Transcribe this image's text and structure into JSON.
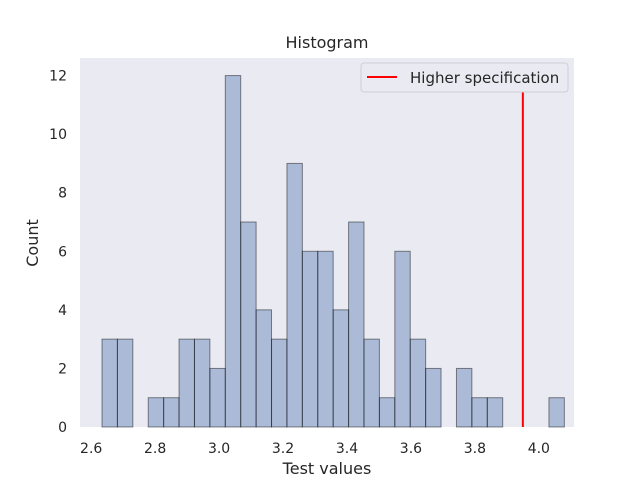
{
  "chart_data": {
    "type": "bar",
    "title": "Histogram",
    "xlabel": "Test values",
    "ylabel": "Count",
    "xlim": [
      2.565,
      4.11
    ],
    "ylim": [
      0,
      12.6
    ],
    "xticks": [
      "2.6",
      "2.8",
      "3.0",
      "3.2",
      "3.4",
      "3.6",
      "3.8",
      "4.0"
    ],
    "yticks": [
      "0",
      "2",
      "4",
      "6",
      "8",
      "10",
      "12"
    ],
    "grid": false,
    "legend_position": "top-right",
    "bin_width": 0.0482,
    "bins_x_start": [
      2.6338,
      2.682,
      2.7302,
      2.7784,
      2.8266,
      2.8748,
      2.923,
      2.9712,
      3.0194,
      3.0676,
      3.1158,
      3.164,
      3.2122,
      3.2604,
      3.3086,
      3.3568,
      3.405,
      3.4532,
      3.5014,
      3.5496,
      3.5978,
      3.646,
      3.6942,
      3.7424,
      3.7906,
      3.8388,
      3.887,
      3.9352,
      3.9834,
      4.0316
    ],
    "counts": [
      3,
      3,
      0,
      1,
      1,
      3,
      3,
      2,
      12,
      7,
      4,
      3,
      9,
      6,
      6,
      4,
      7,
      3,
      1,
      6,
      3,
      2,
      0,
      2,
      1,
      1,
      0,
      0,
      0,
      1
    ],
    "bar_color": "#4c72b0",
    "bar_opacity": 0.4,
    "reference_line": {
      "name": "Higher specification",
      "x": 3.95,
      "color": "#ff0000"
    }
  }
}
